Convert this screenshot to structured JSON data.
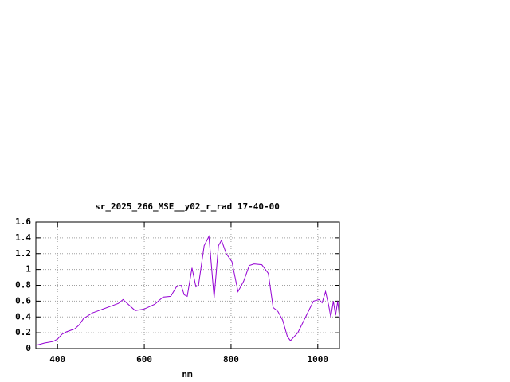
{
  "chart_data": {
    "type": "line",
    "title": "sr_2025_266_MSE__y02_r_rad 17-40-00",
    "x_label": "nm",
    "x": [
      350,
      370,
      390,
      400,
      410,
      420,
      440,
      450,
      460,
      480,
      500,
      520,
      540,
      551,
      565,
      579,
      600,
      624,
      643,
      661,
      674,
      685,
      692,
      699,
      710,
      719,
      725,
      738,
      749,
      754,
      761,
      771,
      778,
      789,
      802,
      816,
      829,
      842,
      853,
      871,
      886,
      897,
      908,
      919,
      930,
      937,
      954,
      972,
      990,
      1003,
      1010,
      1018,
      1025,
      1030,
      1036,
      1041,
      1046,
      1050
    ],
    "series": [
      {
        "name": "sr_2025_266_MSE__y02_r_rad",
        "color": "#9400d3",
        "values": [
          0.04,
          0.07,
          0.09,
          0.12,
          0.18,
          0.21,
          0.25,
          0.3,
          0.38,
          0.45,
          0.49,
          0.53,
          0.57,
          0.62,
          0.55,
          0.48,
          0.5,
          0.56,
          0.65,
          0.66,
          0.78,
          0.8,
          0.68,
          0.66,
          1.02,
          0.78,
          0.8,
          1.3,
          1.42,
          1.1,
          0.64,
          1.3,
          1.37,
          1.2,
          1.1,
          0.72,
          0.85,
          1.05,
          1.07,
          1.06,
          0.95,
          0.52,
          0.47,
          0.36,
          0.15,
          0.1,
          0.2,
          0.4,
          0.6,
          0.62,
          0.58,
          0.72,
          0.55,
          0.4,
          0.6,
          0.42,
          0.6,
          0.4
        ]
      }
    ],
    "xlim": [
      350,
      1050
    ],
    "xticks": [
      400,
      600,
      800,
      1000
    ],
    "ylim": [
      0,
      1.6
    ],
    "yticks": [
      0,
      0.2,
      0.4,
      0.6,
      0.8,
      1,
      1.2,
      1.4,
      1.6
    ],
    "grid": true
  }
}
